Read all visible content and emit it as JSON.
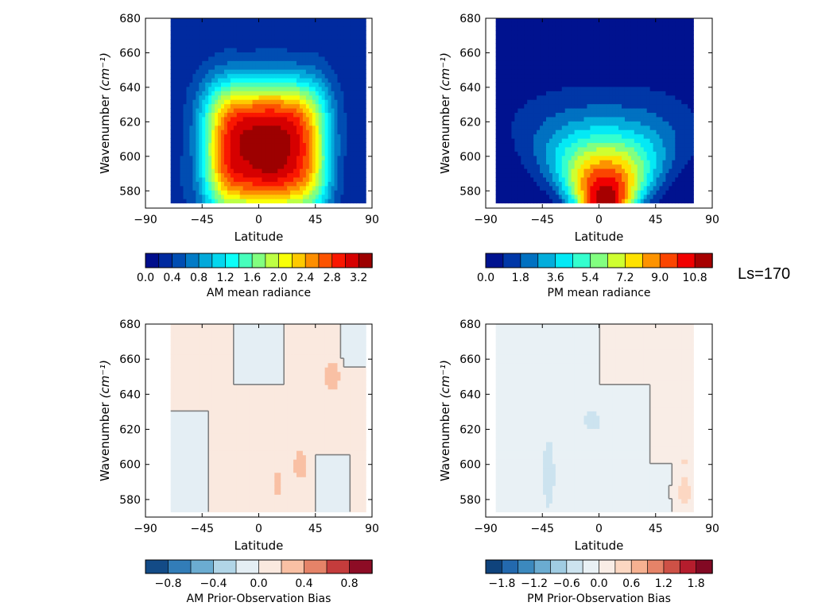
{
  "figure": {
    "ls_label": "Ls=170"
  },
  "chart_data": [
    {
      "type": "heatmap",
      "name": "am-mean-radiance",
      "xlabel": "Latitude",
      "ylabel": "Wavenumber",
      "ylabel_unit": "(cm⁻¹)",
      "xlim": [
        -90,
        90
      ],
      "ylim": [
        570,
        680
      ],
      "xticks": [
        -90,
        -45,
        0,
        45,
        90
      ],
      "xtick_labels": [
        "−90",
        "−45",
        "0",
        "45",
        "90"
      ],
      "yticks": [
        580,
        600,
        620,
        640,
        660,
        680
      ],
      "ytick_labels": [
        "580",
        "600",
        "620",
        "640",
        "660",
        "680"
      ],
      "data_lat_range": [
        -70,
        85
      ],
      "data_wn_range": [
        573,
        680
      ],
      "colorbar": {
        "label": "AM mean radiance",
        "colormap": "jet",
        "min": 0.0,
        "max": 3.4,
        "levels": 17,
        "ticks": [
          0.0,
          0.4,
          0.8,
          1.2,
          1.6,
          2.0,
          2.4,
          2.8,
          3.2
        ],
        "tick_labels": [
          "0.0",
          "0.4",
          "0.8",
          "1.2",
          "1.6",
          "2.0",
          "2.4",
          "2.8",
          "3.2"
        ]
      },
      "field": {
        "kind": "am_radiance",
        "peak": 3.3,
        "peak_wn": 605,
        "edge_value": 0.3
      }
    },
    {
      "type": "heatmap",
      "name": "pm-mean-radiance",
      "xlabel": "Latitude",
      "ylabel": "Wavenumber",
      "ylabel_unit": "(cm⁻¹)",
      "xlim": [
        -90,
        90
      ],
      "ylim": [
        570,
        680
      ],
      "xticks": [
        -90,
        -45,
        0,
        45,
        90
      ],
      "xtick_labels": [
        "−90",
        "−45",
        "0",
        "45",
        "90"
      ],
      "yticks": [
        580,
        600,
        620,
        640,
        660,
        680
      ],
      "ytick_labels": [
        "580",
        "600",
        "620",
        "640",
        "660",
        "680"
      ],
      "data_lat_range": [
        -82,
        75
      ],
      "data_wn_range": [
        573,
        680
      ],
      "colorbar": {
        "label": "PM mean radiance",
        "colormap": "jet",
        "min": 0.0,
        "max": 11.7,
        "levels": 13,
        "ticks": [
          0.0,
          1.8,
          3.6,
          5.4,
          7.2,
          9.0,
          10.8
        ],
        "tick_labels": [
          "0.0",
          "1.8",
          "3.6",
          "5.4",
          "7.2",
          "9.0",
          "10.8"
        ]
      },
      "field": {
        "kind": "pm_radiance",
        "peak": 11.5,
        "peak_wn": 573,
        "edge_value": 0.3
      }
    },
    {
      "type": "heatmap",
      "name": "am-prior-observation-bias",
      "xlabel": "Latitude",
      "ylabel": "Wavenumber",
      "ylabel_unit": "(cm⁻¹)",
      "xlim": [
        -90,
        90
      ],
      "ylim": [
        570,
        680
      ],
      "xticks": [
        -90,
        -45,
        0,
        45,
        90
      ],
      "xtick_labels": [
        "−90",
        "−45",
        "0",
        "45",
        "90"
      ],
      "yticks": [
        580,
        600,
        620,
        640,
        660,
        680
      ],
      "ytick_labels": [
        "580",
        "600",
        "620",
        "640",
        "660",
        "680"
      ],
      "data_lat_range": [
        -70,
        85
      ],
      "data_wn_range": [
        573,
        680
      ],
      "colorbar": {
        "label": "AM Prior-Observation Bias",
        "colormap": "RdBu_r",
        "min": -1.0,
        "max": 1.0,
        "levels": 10,
        "ticks": [
          -0.8,
          -0.4,
          0.0,
          0.4,
          0.8
        ],
        "tick_labels": [
          "−0.8",
          "−0.4",
          "0.0",
          "0.4",
          "0.8"
        ]
      },
      "field": {
        "kind": "am_bias"
      }
    },
    {
      "type": "heatmap",
      "name": "pm-prior-observation-bias",
      "xlabel": "Latitude",
      "ylabel": "Wavenumber",
      "ylabel_unit": "(cm⁻¹)",
      "xlim": [
        -90,
        90
      ],
      "ylim": [
        570,
        680
      ],
      "xticks": [
        -90,
        -45,
        0,
        45,
        90
      ],
      "xtick_labels": [
        "−90",
        "−45",
        "0",
        "45",
        "90"
      ],
      "yticks": [
        580,
        600,
        620,
        640,
        660,
        680
      ],
      "ytick_labels": [
        "580",
        "600",
        "620",
        "640",
        "660",
        "680"
      ],
      "data_lat_range": [
        -82,
        75
      ],
      "data_wn_range": [
        573,
        680
      ],
      "colorbar": {
        "label": "PM Prior-Observation Bias",
        "colormap": "RdBu_r",
        "min": -2.1,
        "max": 2.1,
        "levels": 14,
        "ticks": [
          -1.8,
          -1.2,
          -0.6,
          0.0,
          0.6,
          1.2,
          1.8
        ],
        "tick_labels": [
          "−1.8",
          "−1.2",
          "−0.6",
          "0.0",
          "0.6",
          "1.2",
          "1.8"
        ]
      },
      "field": {
        "kind": "pm_bias"
      }
    }
  ]
}
